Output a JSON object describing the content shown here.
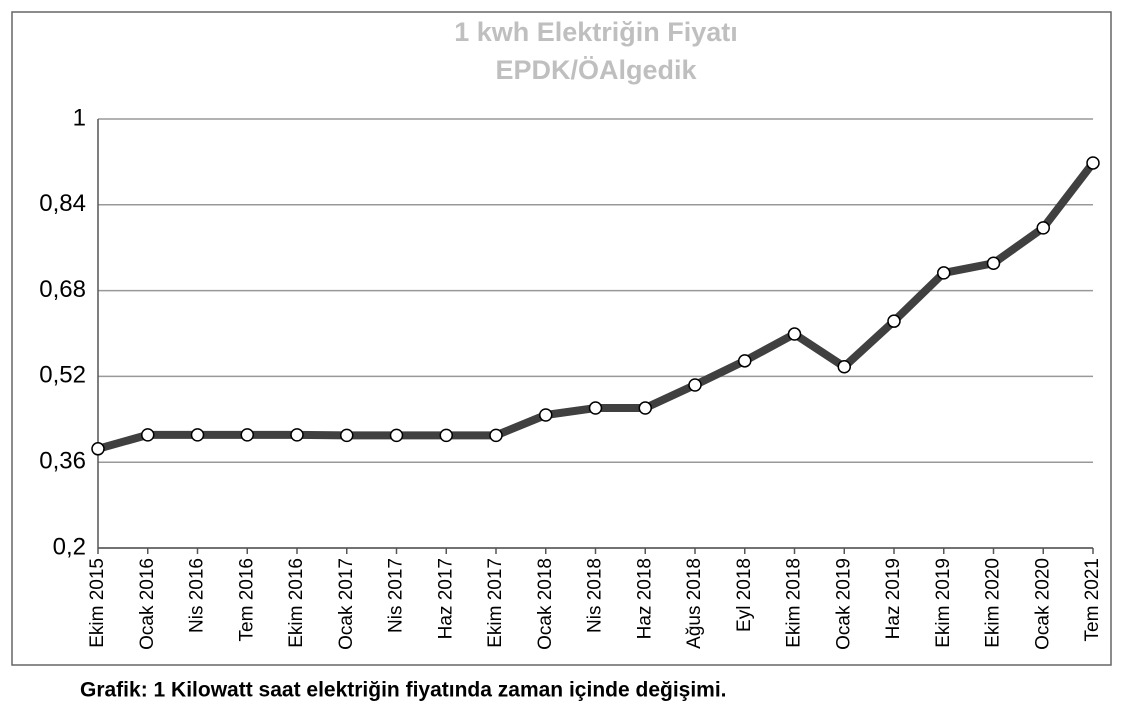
{
  "chart_data": {
    "type": "line",
    "title": "1 kwh Elektriğin Fiyatı",
    "subtitle": "EPDK/ÖAlgedik",
    "caption": "Grafik: 1 Kilowatt saat elektriğin fiyatında zaman içinde değişimi.",
    "categories": [
      "Ekim 2015",
      "Ocak 2016",
      "Nis 2016",
      "Tem 2016",
      "Ekim 2016",
      "Ocak 2017",
      "Nis 2017",
      "Haz 2017",
      "Ekim 2017",
      "Ocak 2018",
      "Nis 2018",
      "Haz 2018",
      "Ağus 2018",
      "Eyl 2018",
      "Ekim 2018",
      "Ocak 2019",
      "Haz 2019",
      "Ekim 2019",
      "Ekim 2020",
      "Ocak 2020",
      "Tem 2021"
    ],
    "values": [
      0.385,
      0.411,
      0.411,
      0.411,
      0.411,
      0.41,
      0.41,
      0.41,
      0.41,
      0.448,
      0.461,
      0.461,
      0.504,
      0.549,
      0.599,
      0.538,
      0.623,
      0.713,
      0.731,
      0.797,
      0.918
    ],
    "color": "#404040",
    "ylim": [
      0.2,
      1
    ],
    "yticks": [
      {
        "value": 0.2,
        "label": "0,2"
      },
      {
        "value": 0.36,
        "label": "0,36"
      },
      {
        "value": 0.52,
        "label": "0,52"
      },
      {
        "value": 0.68,
        "label": "0,68"
      },
      {
        "value": 0.84,
        "label": "0,84"
      },
      1
    ],
    "grid": true
  }
}
